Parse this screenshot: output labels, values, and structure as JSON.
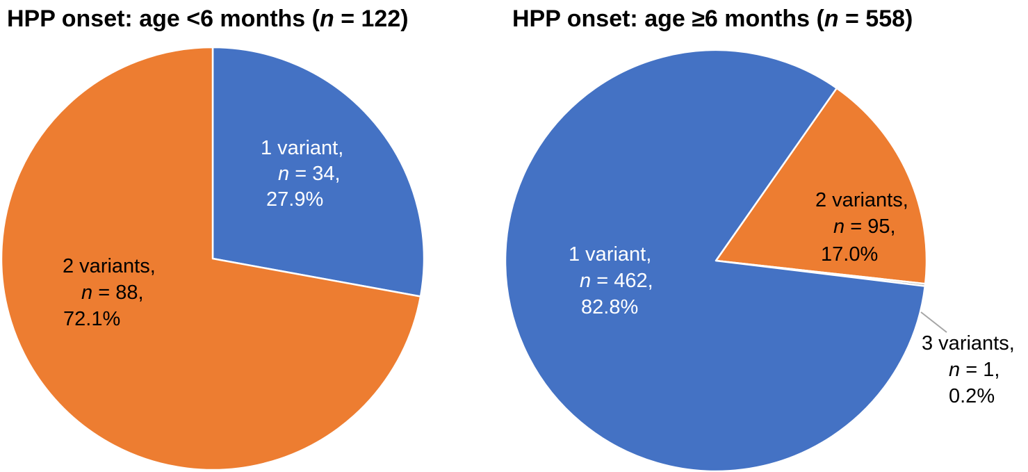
{
  "chart_data": [
    {
      "type": "pie",
      "title_prefix": "HPP onset: age <6 months (",
      "title_n": "n",
      "title_suffix": " = 122)",
      "slices": [
        {
          "name": "1 variant",
          "n": 34,
          "percent": 27.9,
          "color": "#4472C4",
          "label_lines": [
            "1 variant,",
            "= 34,",
            "27.9%"
          ],
          "label_color": "#FFFFFF"
        },
        {
          "name": "2 variants",
          "n": 88,
          "percent": 72.1,
          "color": "#ED7D31",
          "label_lines": [
            "2 variants,",
            "= 88,",
            "72.1%"
          ],
          "label_color": "#000000"
        }
      ],
      "start_angle_deg": 0,
      "direction": "clockwise"
    },
    {
      "type": "pie",
      "title_prefix": "HPP onset: age ≥6 months (",
      "title_n": "n",
      "title_suffix": " = 558)",
      "slices": [
        {
          "name": "2 variants",
          "n": 95,
          "percent": 17.0,
          "color": "#ED7D31",
          "label_lines": [
            "2 variants,",
            "= 95,",
            "17.0%"
          ],
          "label_color": "#000000"
        },
        {
          "name": "3 variants",
          "n": 1,
          "percent": 0.2,
          "color": "#A5A5A5",
          "label_lines": [
            "3 variants,",
            "= 1,",
            "0.2%"
          ],
          "label_color": "#000000"
        },
        {
          "name": "1 variant",
          "n": 462,
          "percent": 82.8,
          "color": "#4472C4",
          "label_lines": [
            "1 variant,",
            "= 462,",
            "82.8%"
          ],
          "label_color": "#FFFFFF"
        }
      ],
      "start_angle_deg": 35,
      "direction": "clockwise"
    }
  ],
  "n_symbol": "n",
  "colors": {
    "blue": "#4472C4",
    "orange": "#ED7D31",
    "gray": "#A5A5A5"
  }
}
